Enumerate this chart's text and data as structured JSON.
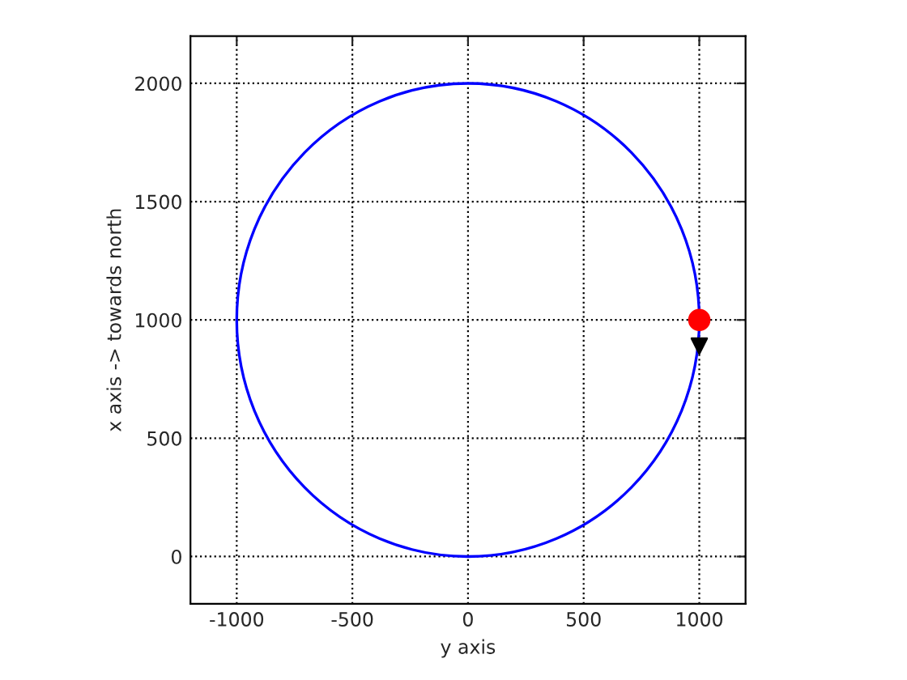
{
  "chart_data": {
    "type": "scatter",
    "xlabel": "y axis",
    "ylabel": "x axis -> towards north",
    "xlim": [
      -1200,
      1200
    ],
    "xticks": [
      -1000,
      -500,
      0,
      500,
      1000
    ],
    "ylim": [
      -200,
      2200
    ],
    "yticks": [
      0,
      500,
      1000,
      1500,
      2000
    ],
    "grid": true,
    "legend": false,
    "series": [
      {
        "color": "#ff0000",
        "marker": "circle",
        "x": [
          1000
        ],
        "values": [
          1000
        ]
      },
      {
        "color": "#000000",
        "marker": "triangle",
        "x": [
          1000
        ],
        "values": [
          890
        ]
      }
    ]
  }
}
